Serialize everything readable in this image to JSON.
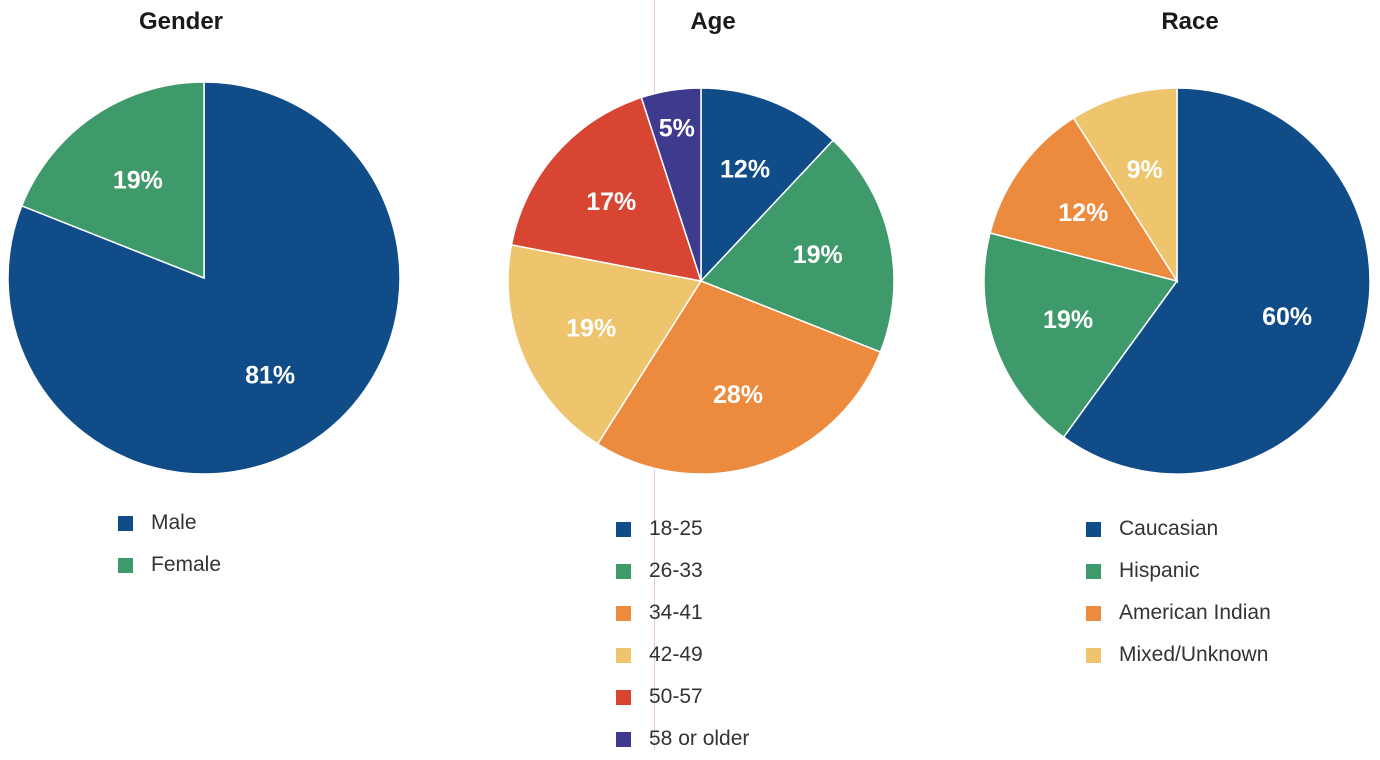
{
  "colors": {
    "navy": "#0f4c88",
    "green": "#3f9a6b",
    "orange": "#ec8a3e",
    "yellow": "#eec46d",
    "red": "#d84633",
    "purple": "#3e3a8e"
  },
  "chart_data": [
    {
      "type": "pie",
      "title": "Gender",
      "categories": [
        "Male",
        "Female"
      ],
      "values": [
        81,
        19
      ],
      "labels": [
        "81%",
        "19%"
      ],
      "colors": [
        "#0f4c88",
        "#3f9a6b"
      ],
      "legend_position": "bottom"
    },
    {
      "type": "pie",
      "title": "Age",
      "categories": [
        "18-25",
        "26-33",
        "34-41",
        "42-49",
        "50-57",
        "58 or older"
      ],
      "values": [
        12,
        19,
        28,
        19,
        17,
        5
      ],
      "labels": [
        "12%",
        "19%",
        "28%",
        "19%",
        "17%",
        "5%"
      ],
      "colors": [
        "#0f4c88",
        "#3f9a6b",
        "#ec8a3e",
        "#eec46d",
        "#d84633",
        "#3e3a8e"
      ],
      "legend_position": "bottom"
    },
    {
      "type": "pie",
      "title": "Race",
      "categories": [
        "Caucasian",
        "Hispanic",
        "American Indian",
        "Mixed/Unknown"
      ],
      "values": [
        60,
        19,
        12,
        9
      ],
      "labels": [
        "60%",
        "19%",
        "12%",
        "9%"
      ],
      "colors": [
        "#0f4c88",
        "#3f9a6b",
        "#ec8a3e",
        "#eec46d"
      ],
      "legend_position": "bottom"
    }
  ]
}
